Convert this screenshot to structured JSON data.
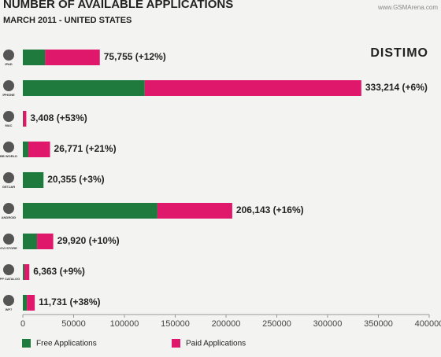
{
  "chart_data": {
    "type": "stacked-barh",
    "title": "NUMBER OF AVAILABLE APPLICATIONS",
    "subtitle": "MARCH 2011 - UNITED STATES",
    "brand": "DISTIMO",
    "watermark": "www.GSMArena.com",
    "categories": [
      "IPAD",
      "IPHONE",
      "MAC",
      "BB WORLD",
      "GETJAR",
      "ANDROID",
      "OVI STORE",
      "APP CATALOG",
      "WP7"
    ],
    "series": [
      {
        "name": "Free Applications",
        "color": "#1f7a3d",
        "values": [
          22000,
          120000,
          400,
          5400,
          20355,
          132500,
          14000,
          1500,
          4000
        ]
      },
      {
        "name": "Paid Applications",
        "color": "#e0186c",
        "values": [
          53755,
          213214,
          3008,
          21371,
          0,
          73643,
          15920,
          4863,
          7731
        ]
      }
    ],
    "bar_labels": [
      "75,755 (+12%)",
      "333,214 (+6%)",
      "3,408 (+53%)",
      "26,771 (+21%)",
      "20,355 (+3%)",
      "206,143 (+16%)",
      "29,920 (+10%)",
      "6,363 (+9%)",
      "11,731 (+38%)"
    ],
    "xlim": [
      0,
      400000
    ],
    "xticks": [
      0,
      50000,
      100000,
      150000,
      200000,
      250000,
      300000,
      350000,
      400000
    ]
  }
}
